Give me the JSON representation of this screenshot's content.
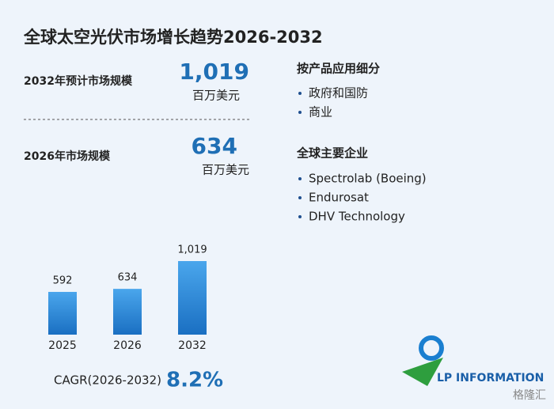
{
  "title": "全球太空光伏市场增长趋势2026-2032",
  "stats": [
    {
      "label": "2032年预计市场规模",
      "value": "1,019",
      "unit": "百万美元"
    },
    {
      "label": "2026年市场规模",
      "value": "634",
      "unit": "百万美元"
    }
  ],
  "segments": {
    "title": "按产品应用细分",
    "items": [
      "政府和国防",
      "商业"
    ]
  },
  "companies": {
    "title": "全球主要企业",
    "items": [
      "Spectrolab (Boeing)",
      "Endurosat",
      "DHV Technology"
    ]
  },
  "chart_data": {
    "type": "bar",
    "categories": [
      "2025",
      "2026",
      "2032"
    ],
    "values": [
      592,
      634,
      1019
    ],
    "value_labels": [
      "592",
      "634",
      "1,019"
    ],
    "color": "#2a86d6"
  },
  "cagr": {
    "label": "CAGR(2026-2032)",
    "value": "8.2%"
  },
  "logo": "LP INFORMATION",
  "watermark": "格隆汇"
}
